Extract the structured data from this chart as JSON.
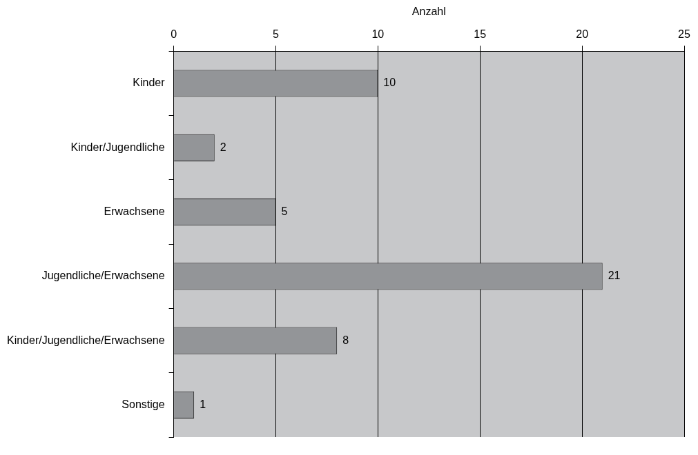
{
  "chart_data": {
    "type": "bar",
    "orientation": "horizontal",
    "xlabel": "Anzahl",
    "categories": [
      "Kinder",
      "Kinder/Jugendliche",
      "Erwachsene",
      "Jugendliche/Erwachsene",
      "Kinder/Jugendliche/Erwachsene",
      "Sonstige"
    ],
    "values": [
      10,
      2,
      5,
      21,
      8,
      1
    ],
    "color": "#939598",
    "xlim": [
      0,
      25
    ],
    "xticks": [
      0,
      5,
      10,
      15,
      20,
      25
    ],
    "grid": "x",
    "data_labels": true,
    "legend": false
  }
}
